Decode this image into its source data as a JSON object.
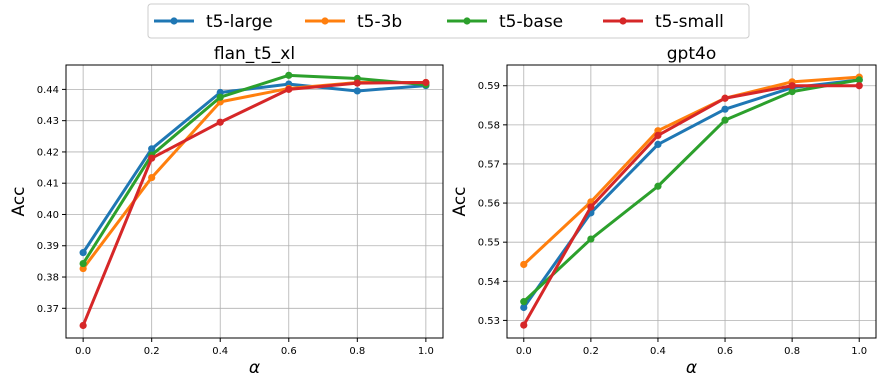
{
  "legend": {
    "position": "top-center",
    "entries": [
      {
        "label": "t5-large",
        "color": "#1f77b4"
      },
      {
        "label": "t5-3b",
        "color": "#ff7f0e"
      },
      {
        "label": "t5-base",
        "color": "#2ca02c"
      },
      {
        "label": "t5-small",
        "color": "#d62728"
      }
    ]
  },
  "chart_data": [
    {
      "type": "line",
      "title": "flan_t5_xl",
      "xlabel": "α",
      "ylabel": "Acc",
      "grid": true,
      "x": [
        0.0,
        0.2,
        0.4,
        0.6,
        0.8,
        1.0
      ],
      "xticks": [
        "0.0",
        "0.2",
        "0.4",
        "0.6",
        "0.8",
        "1.0"
      ],
      "yticks": [
        "0.37",
        "0.38",
        "0.39",
        "0.40",
        "0.41",
        "0.42",
        "0.43",
        "0.44"
      ],
      "xlim": [
        -0.05,
        1.05
      ],
      "ylim": [
        0.3605,
        0.4478
      ],
      "series": [
        {
          "name": "t5-large",
          "color": "#1f77b4",
          "values": [
            0.3878,
            0.421,
            0.439,
            0.4417,
            0.4395,
            0.4412
          ]
        },
        {
          "name": "t5-3b",
          "color": "#ff7f0e",
          "values": [
            0.3827,
            0.4118,
            0.436,
            0.4403,
            0.4422,
            0.4422
          ]
        },
        {
          "name": "t5-base",
          "color": "#2ca02c",
          "values": [
            0.3843,
            0.419,
            0.4375,
            0.4445,
            0.4435,
            0.4415
          ]
        },
        {
          "name": "t5-small",
          "color": "#d62728",
          "values": [
            0.3645,
            0.418,
            0.4295,
            0.44,
            0.442,
            0.4422
          ]
        }
      ]
    },
    {
      "type": "line",
      "title": "gpt4o",
      "xlabel": "α",
      "ylabel": "Acc",
      "grid": true,
      "x": [
        0.0,
        0.2,
        0.4,
        0.6,
        0.8,
        1.0
      ],
      "xticks": [
        "0.0",
        "0.2",
        "0.4",
        "0.6",
        "0.8",
        "1.0"
      ],
      "yticks": [
        "0.53",
        "0.54",
        "0.55",
        "0.56",
        "0.57",
        "0.58",
        "0.59"
      ],
      "xlim": [
        -0.05,
        1.05
      ],
      "ylim": [
        0.5255,
        0.5953
      ],
      "series": [
        {
          "name": "t5-large",
          "color": "#1f77b4",
          "values": [
            0.5333,
            0.5575,
            0.575,
            0.584,
            0.5895,
            0.5915
          ]
        },
        {
          "name": "t5-3b",
          "color": "#ff7f0e",
          "values": [
            0.5443,
            0.5603,
            0.5785,
            0.5868,
            0.591,
            0.5922
          ]
        },
        {
          "name": "t5-base",
          "color": "#2ca02c",
          "values": [
            0.5348,
            0.5508,
            0.5643,
            0.5812,
            0.5885,
            0.5915
          ]
        },
        {
          "name": "t5-small",
          "color": "#d62728",
          "values": [
            0.5288,
            0.559,
            0.5773,
            0.5868,
            0.59,
            0.59
          ]
        }
      ]
    }
  ]
}
